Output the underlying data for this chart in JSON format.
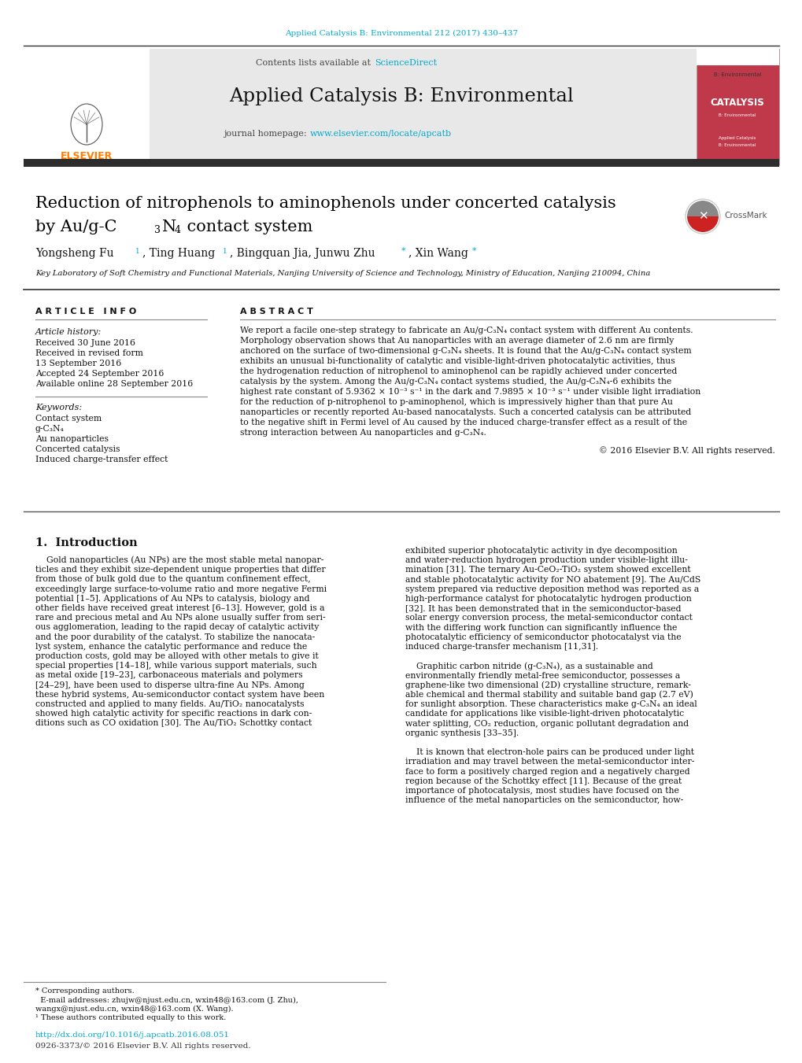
{
  "page_width": 10.2,
  "page_height": 13.51,
  "bg_color": "#ffffff",
  "journal_citation": "Applied Catalysis B: Environmental 212 (2017) 430–437",
  "journal_citation_color": "#00aacc",
  "journal_name": "Applied Catalysis B: Environmental",
  "contents_text": "Contents lists available at ",
  "sciencedirect_text": "ScienceDirect",
  "sciencedirect_color": "#00aacc",
  "journal_homepage_text": "journal homepage: ",
  "journal_url": "www.elsevier.com/locate/apcatb",
  "journal_url_color": "#00aacc",
  "header_bg": "#e8e8e8",
  "dark_bar_color": "#2d2d2d",
  "paper_title_line1": "Reduction of nitrophenols to aminophenols under concerted catalysis",
  "paper_title_line2": "by Au/g-C₃N₄ contact system",
  "affiliation": "Key Laboratory of Soft Chemistry and Functional Materials, Nanjing University of Science and Technology, Ministry of Education, Nanjing 210094, China",
  "article_info_title": "A R T I C L E   I N F O",
  "article_history_title": "Article history:",
  "received_date": "Received 30 June 2016",
  "revised_date": "Received in revised form",
  "revised_date2": "13 September 2016",
  "accepted_date": "Accepted 24 September 2016",
  "available_date": "Available online 28 September 2016",
  "keywords_title": "Keywords:",
  "keywords": [
    "Contact system",
    "g-C₃N₄",
    "Au nanoparticles",
    "Concerted catalysis",
    "Induced charge-transfer effect"
  ],
  "abstract_title": "A B S T R A C T",
  "abstract_text": "We report a facile one-step strategy to fabricate an Au/g-C₃N₄ contact system with different Au contents. Morphology observation shows that Au nanoparticles with an average diameter of 2.6 nm are firmly anchored on the surface of two-dimensional g-C₃N₄ sheets. It is found that the Au/g-C₃N₄ contact system exhibits an unusual bi-functionality of catalytic and visible-light-driven photocatalytic activities, thus the hydrogenation reduction of nitrophenol to aminophenol can be rapidly achieved under concerted catalysis by the system. Among the Au/g-C₃N₄ contact systems studied, the Au/g-C₃N₄-6 exhibits the highest rate constant of 5.9362 × 10⁻³ s⁻¹ in the dark and 7.9895 × 10⁻³ s⁻¹ under visible light irradiation for the reduction of p-nitrophenol to p-aminophenol, which is impressively higher than that pure Au nanoparticles or recently reported Au-based nanocatalysts. Such a concerted catalysis can be attributed to the negative shift in Fermi level of Au caused by the induced charge-transfer effect as a result of the strong interaction between Au nanoparticles and g-C₃N₄.",
  "copyright_text": "© 2016 Elsevier B.V. All rights reserved.",
  "section1_title": "1.  Introduction",
  "intro_left_lines": [
    "    Gold nanoparticles (Au NPs) are the most stable metal nanopar-",
    "ticles and they exhibit size-dependent unique properties that differ",
    "from those of bulk gold due to the quantum confinement effect,",
    "exceedingly large surface-to-volume ratio and more negative Fermi",
    "potential [1–5]. Applications of Au NPs to catalysis, biology and",
    "other fields have received great interest [6–13]. However, gold is a",
    "rare and precious metal and Au NPs alone usually suffer from seri-",
    "ous agglomeration, leading to the rapid decay of catalytic activity",
    "and the poor durability of the catalyst. To stabilize the nanocata-",
    "lyst system, enhance the catalytic performance and reduce the",
    "production costs, gold may be alloyed with other metals to give it",
    "special properties [14–18], while various support materials, such",
    "as metal oxide [19–23], carbonaceous materials and polymers",
    "[24–29], have been used to disperse ultra-fine Au NPs. Among",
    "these hybrid systems, Au-semiconductor contact system have been",
    "constructed and applied to many fields. Au/TiO₂ nanocatalysts",
    "showed high catalytic activity for specific reactions in dark con-",
    "ditions such as CO oxidation [30]. The Au/TiO₂ Schottky contact"
  ],
  "intro_right_lines": [
    "exhibited superior photocatalytic activity in dye decomposition",
    "and water-reduction hydrogen production under visible-light illu-",
    "mination [31]. The ternary Au-CeO₂-TiO₂ system showed excellent",
    "and stable photocatalytic activity for NO abatement [9]. The Au/CdS",
    "system prepared via reductive deposition method was reported as a",
    "high-performance catalyst for photocatalytic hydrogen production",
    "[32]. It has been demonstrated that in the semiconductor-based",
    "solar energy conversion process, the metal-semiconductor contact",
    "with the differing work function can significantly influence the",
    "photocatalytic efficiency of semiconductor photocatalyst via the",
    "induced charge-transfer mechanism [11,31].",
    "",
    "    Graphitic carbon nitride (g-C₃N₄), as a sustainable and",
    "environmentally friendly metal-free semiconductor, possesses a",
    "graphene-like two dimensional (2D) crystalline structure, remark-",
    "able chemical and thermal stability and suitable band gap (2.7 eV)",
    "for sunlight absorption. These characteristics make g-C₃N₄ an ideal",
    "candidate for applications like visible-light-driven photocatalytic",
    "water splitting, CO₂ reduction, organic pollutant degradation and",
    "organic synthesis [33–35].",
    "",
    "    It is known that electron-hole pairs can be produced under light",
    "irradiation and may travel between the metal-semiconductor inter-",
    "face to form a positively charged region and a negatively charged",
    "region because of the Schottky effect [11]. Because of the great",
    "importance of photocatalysis, most studies have focused on the",
    "influence of the metal nanoparticles on the semiconductor, how-"
  ],
  "footnote_lines": [
    "* Corresponding authors.",
    "  E-mail addresses: zhujw@njust.edu.cn, wxin48@163.com (J. Zhu),",
    "wangx@njust.edu.cn, wxin48@163.com (X. Wang).",
    "¹ These authors contributed equally to this work."
  ],
  "doi_text": "http://dx.doi.org/10.1016/j.apcatb.2016.08.051",
  "issn_text": "0926-3373/© 2016 Elsevier B.V. All rights reserved.",
  "text_color": "#000000",
  "link_color": "#00aacc",
  "title_color": "#000000",
  "abstract_lines": [
    "We report a facile one-step strategy to fabricate an Au/g-C₃N₄ contact system with different Au contents.",
    "Morphology observation shows that Au nanoparticles with an average diameter of 2.6 nm are firmly",
    "anchored on the surface of two-dimensional g-C₃N₄ sheets. It is found that the Au/g-C₃N₄ contact system",
    "exhibits an unusual bi-functionality of catalytic and visible-light-driven photocatalytic activities, thus",
    "the hydrogenation reduction of nitrophenol to aminophenol can be rapidly achieved under concerted",
    "catalysis by the system. Among the Au/g-C₃N₄ contact systems studied, the Au/g-C₃N₄-6 exhibits the",
    "highest rate constant of 5.9362 × 10⁻³ s⁻¹ in the dark and 7.9895 × 10⁻³ s⁻¹ under visible light irradiation",
    "for the reduction of p-nitrophenol to p-aminophenol, which is impressively higher than that pure Au",
    "nanoparticles or recently reported Au-based nanocatalysts. Such a concerted catalysis can be attributed",
    "to the negative shift in Fermi level of Au caused by the induced charge-transfer effect as a result of the",
    "strong interaction between Au nanoparticles and g-C₃N₄."
  ]
}
